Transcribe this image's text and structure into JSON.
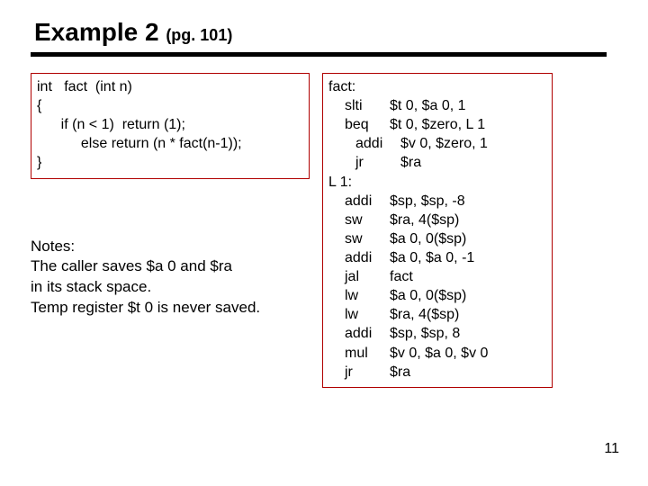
{
  "title_main": "Example 2 ",
  "title_pg": "(pg. 101)",
  "c_code": "int   fact  (int n)\n{\n      if (n < 1)  return (1);\n           else return (n * fact(n-1));\n}",
  "notes": "Notes:\nThe caller saves $a 0 and $ra\nin its stack space.\nTemp register $t 0 is never saved.",
  "asm": {
    "l0": {
      "lbl": "fact:"
    },
    "l1": {
      "ind": "ind1",
      "op": "slti",
      "args": "$t 0, $a 0, 1"
    },
    "l2": {
      "ind": "ind1",
      "op": "beq",
      "args": "$t 0, $zero, L 1"
    },
    "l3": {
      "ind": "ind2",
      "op": "addi",
      "args": "$v 0, $zero, 1"
    },
    "l4": {
      "ind": "ind2",
      "op": "jr",
      "args": "$ra"
    },
    "l5": {
      "lbl": "L 1:"
    },
    "l6": {
      "ind": "ind1",
      "op": "addi",
      "args": "$sp, $sp, -8"
    },
    "l7": {
      "ind": "ind1",
      "op": "sw",
      "args": "$ra, 4($sp)"
    },
    "l8": {
      "ind": "ind1",
      "op": "sw",
      "args": "$a 0, 0($sp)"
    },
    "l9": {
      "ind": "ind1",
      "op": "addi",
      "args": "$a 0, $a 0, -1"
    },
    "l10": {
      "ind": "ind1",
      "op": "jal",
      "args": "fact"
    },
    "l11": {
      "ind": "ind1",
      "op": "lw",
      "args": "$a 0, 0($sp)"
    },
    "l12": {
      "ind": "ind1",
      "op": "lw",
      "args": "$ra, 4($sp)"
    },
    "l13": {
      "ind": "ind1",
      "op": "addi",
      "args": "$sp, $sp, 8"
    },
    "l14": {
      "ind": "ind1",
      "op": "mul",
      "args": "$v 0, $a 0, $v 0"
    },
    "l15": {
      "ind": "ind1",
      "op": "jr",
      "args": "$ra"
    }
  },
  "page_number": "11",
  "colors": {
    "box_border": "#b00000",
    "rule": "#000000",
    "bg": "#ffffff",
    "text": "#000000"
  }
}
